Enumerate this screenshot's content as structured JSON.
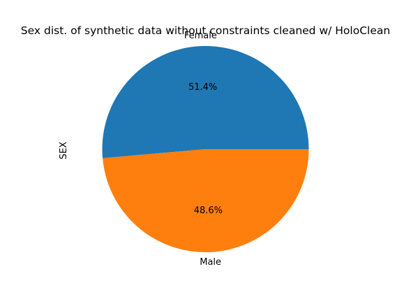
{
  "chart_data": {
    "type": "pie",
    "title": "Sex dist. of synthetic data without constraints cleaned w/ HoloClean",
    "ylabel": "SEX",
    "categories": [
      "Female",
      "Male"
    ],
    "values": [
      51.4,
      48.6
    ],
    "percent_labels": [
      "51.4%",
      "48.6%"
    ],
    "colors": [
      "#1f77b4",
      "#ff7f0e"
    ],
    "start_angle": 0,
    "direction": "counterclockwise"
  }
}
